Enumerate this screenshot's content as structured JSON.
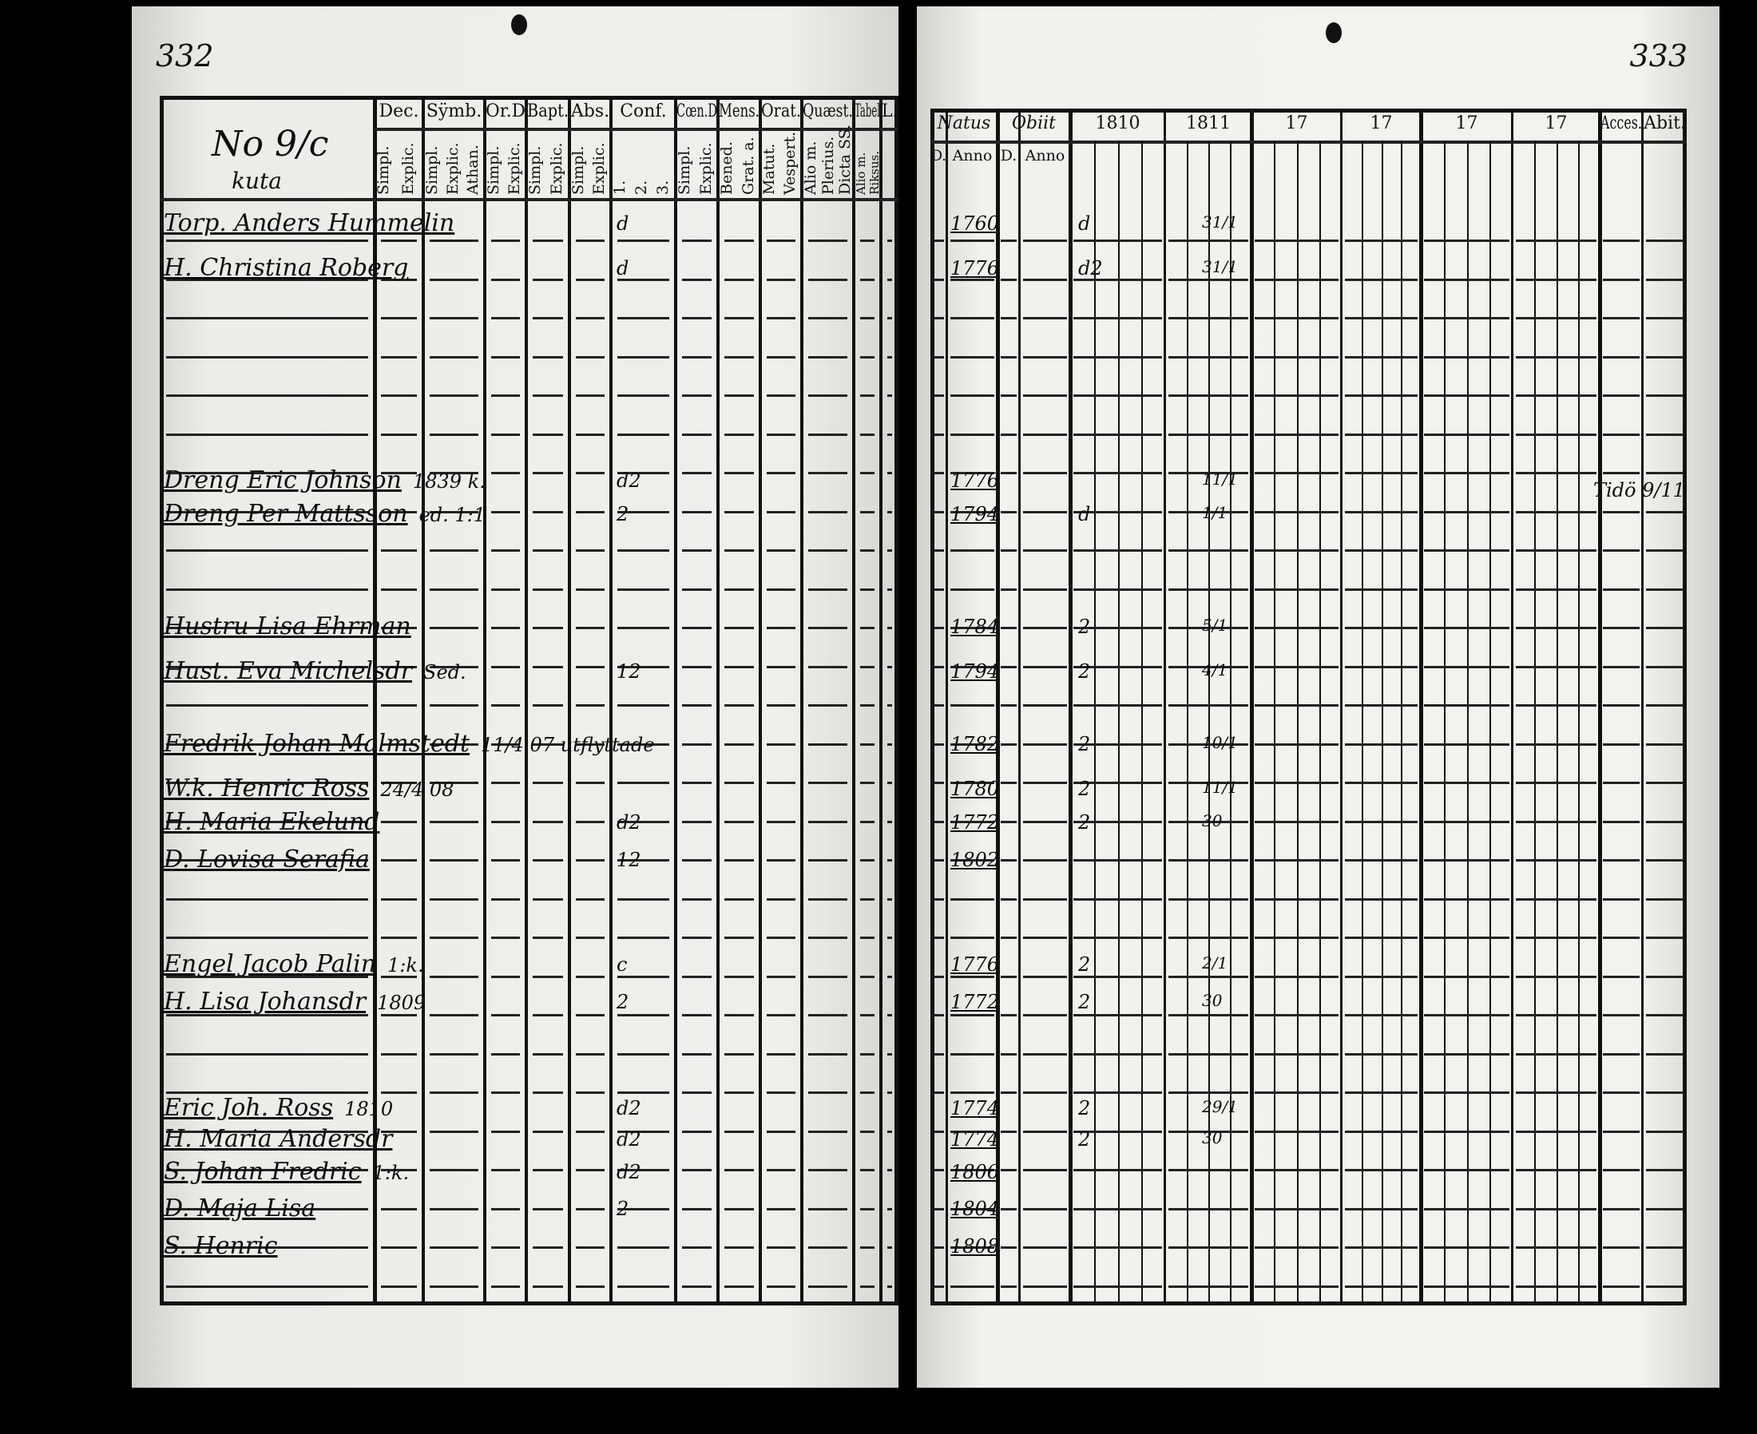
{
  "left_page": {
    "page_number": "332",
    "household": {
      "number": "No 9/c",
      "place": "kuta"
    },
    "header_columns": [
      {
        "label": "Dec.",
        "sub": [
          "Explic.",
          "Simpl."
        ]
      },
      {
        "label": "Sÿmb.",
        "sub": [
          "Athan.",
          "Explic.",
          "Simpl."
        ]
      },
      {
        "label": "Or.D",
        "sub": [
          "Explic.",
          "Simpl."
        ]
      },
      {
        "label": "Bapt.",
        "sub": [
          "Explic.",
          "Simpl."
        ]
      },
      {
        "label": "Abs.",
        "sub": [
          "Explic.",
          "Simpl."
        ]
      },
      {
        "label": "Conf.",
        "sub": [
          "3.",
          "2.",
          "1."
        ]
      },
      {
        "label": "Cœn.D",
        "sub": [
          "Explic.",
          "Simpl."
        ]
      },
      {
        "label": "Mens.",
        "sub": [
          "Grat. a.",
          "Bened."
        ]
      },
      {
        "label": "Orat.",
        "sub": [
          "Vespert.",
          "Matut."
        ]
      },
      {
        "label": "Quæst.",
        "sub": [
          "Dicta SS.",
          "Plerius.",
          "Alio m."
        ]
      },
      {
        "label": "Tabel",
        "sub": [
          "Riksus.",
          "Alio m."
        ]
      },
      {
        "label": "L.",
        "sub": [
          ""
        ]
      }
    ],
    "entries": [
      {
        "name": "Torp. Anders Hummelin",
        "note": "",
        "conf": "d"
      },
      {
        "name": "H. Christina Roberg",
        "note": "",
        "conf": "d"
      },
      {
        "name": "Dreng Eric Johnson",
        "note": "1839 k.",
        "conf": "d2"
      },
      {
        "name": "Dreng Per Mattsson",
        "note": "ed. 1:1",
        "conf": "2"
      },
      {
        "name": "Hustru Lisa Ehrman",
        "note": "",
        "conf": ""
      },
      {
        "name": "Hust. Eva Michelsdr",
        "note": "Sed.",
        "conf": "12"
      },
      {
        "name": "Fredrik Johan Malmstedt",
        "note": "11/4 07 utflyttade",
        "conf": ""
      },
      {
        "name": "W.k. Henric Ross",
        "note": "24/4 08",
        "conf": ""
      },
      {
        "name": "H. Maria Ekelund",
        "note": "",
        "conf": "d2"
      },
      {
        "name": "D. Lovisa Serafia",
        "note": "",
        "conf": "12"
      },
      {
        "name": "Engel Jacob Palin",
        "note": "1:k.",
        "conf": "c"
      },
      {
        "name": "H. Lisa Johansdr",
        "note": "1809",
        "conf": "2"
      },
      {
        "name": "Eric Joh. Ross",
        "note": "1810",
        "conf": "d2"
      },
      {
        "name": "H. Maria Andersdr",
        "note": "",
        "conf": "d2"
      },
      {
        "name": "S. Johan Fredric",
        "note": "1:k.",
        "conf": "d2"
      },
      {
        "name": "D. Maja Lisa",
        "note": "",
        "conf": "2"
      },
      {
        "name": "S. Henric",
        "note": "",
        "conf": ""
      }
    ]
  },
  "right_page": {
    "page_number": "333",
    "header_columns": [
      {
        "label": "Natus",
        "sub": [
          "D.",
          "Anno"
        ]
      },
      {
        "label": "Obiit",
        "sub": [
          "D.",
          "Anno"
        ]
      },
      {
        "label": "1810"
      },
      {
        "label": "1811"
      },
      {
        "label": "17"
      },
      {
        "label": "17"
      },
      {
        "label": "17"
      },
      {
        "label": "17"
      },
      {
        "label": "Acces."
      },
      {
        "label": "Abit."
      }
    ],
    "entries": [
      {
        "natus": "1760",
        "y1810": "d",
        "y1811": "31/1"
      },
      {
        "natus": "1776",
        "y1810": "d2",
        "y1811": "31/1"
      },
      {
        "natus": "1776",
        "y1810": "",
        "y1811": "11/1"
      },
      {
        "natus": "1794",
        "y1810": "d",
        "y1811": "1/1"
      },
      {
        "natus": "1784",
        "y1810": "2",
        "y1811": "5/1"
      },
      {
        "natus": "1794",
        "y1810": "2",
        "y1811": "4/1"
      },
      {
        "natus": "1782",
        "y1810": "2",
        "y1811": "10/1"
      },
      {
        "natus": "1780",
        "y1810": "2",
        "y1811": "11/1"
      },
      {
        "natus": "1772",
        "y1810": "2",
        "y1811": "30"
      },
      {
        "natus": "1802",
        "y1810": "",
        "y1811": ""
      },
      {
        "natus": "1776",
        "y1810": "2",
        "y1811": "2/1"
      },
      {
        "natus": "1772",
        "y1810": "2",
        "y1811": "30"
      },
      {
        "natus": "1774",
        "y1810": "2",
        "y1811": "29/1"
      },
      {
        "natus": "1774",
        "y1810": "2",
        "y1811": "30"
      },
      {
        "natus": "1806",
        "y1810": "",
        "y1811": ""
      },
      {
        "natus": "1804",
        "y1810": "",
        "y1811": ""
      },
      {
        "natus": "1808",
        "y1810": "",
        "y1811": ""
      }
    ],
    "acces_note": "Tidö 9/11"
  }
}
